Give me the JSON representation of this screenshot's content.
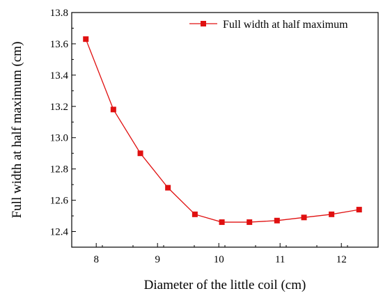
{
  "chart_data": {
    "type": "line",
    "xlabel": "Diameter of the little coil (cm)",
    "ylabel": "Full width at half maximum (cm)",
    "xlim": [
      7.6,
      12.6
    ],
    "ylim": [
      12.3,
      13.8
    ],
    "x_ticks": [
      8,
      9,
      10,
      11,
      12
    ],
    "y_ticks": [
      12.4,
      12.6,
      12.8,
      13.0,
      13.2,
      13.4,
      13.6,
      13.8
    ],
    "x_tick_labels": [
      "8",
      "9",
      "10",
      "11",
      "12"
    ],
    "y_tick_labels": [
      "12.4",
      "12.6",
      "12.8",
      "13.0",
      "13.2",
      "13.4",
      "13.6",
      "13.8"
    ],
    "grid": false,
    "legend_position": "top-right",
    "series": [
      {
        "name": "Full width at half maximum",
        "color": "#e01010",
        "marker": "square",
        "x": [
          7.83,
          8.28,
          8.72,
          9.17,
          9.61,
          10.05,
          10.5,
          10.95,
          11.39,
          11.84,
          12.29
        ],
        "y": [
          13.63,
          13.18,
          12.9,
          12.68,
          12.51,
          12.46,
          12.46,
          12.47,
          12.49,
          12.51,
          12.54
        ]
      }
    ]
  }
}
